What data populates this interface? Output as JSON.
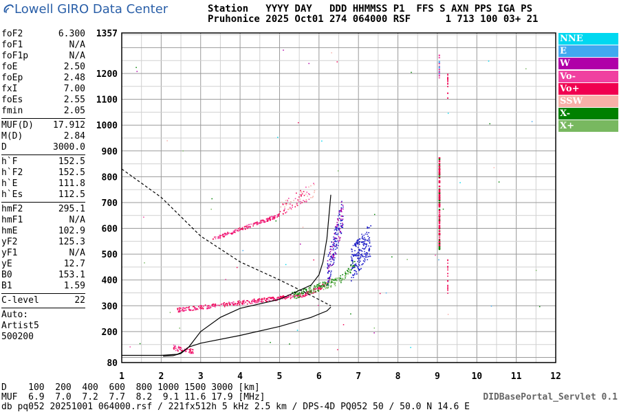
{
  "header": {
    "logo_text": "Lowell GIRO Data Center",
    "station_line1": "Station   YYYY DAY   DDD HHMMSS P1  FFS S AXN PPS IGA PS",
    "station_line2": "Pruhonice 2025 Oct01 274 064000 RSF      1 713 100 03+ 21"
  },
  "params": [
    {
      "name": "foF2",
      "value": "6.300"
    },
    {
      "name": "foF1",
      "value": "N/A"
    },
    {
      "name": "foF1p",
      "value": "N/A"
    },
    {
      "name": "foE",
      "value": "2.50"
    },
    {
      "name": "foEp",
      "value": "2.48"
    },
    {
      "name": "fxI",
      "value": "7.00"
    },
    {
      "name": "foEs",
      "value": "2.55"
    },
    {
      "name": "fmin",
      "value": "2.05"
    },
    {
      "sep": true
    },
    {
      "name": "MUF(D)",
      "value": "17.912"
    },
    {
      "name": "M(D)",
      "value": "2.84"
    },
    {
      "name": "D",
      "value": "3000.0"
    },
    {
      "sep": true
    },
    {
      "name": "h`F",
      "value": "152.5"
    },
    {
      "name": "h`F2",
      "value": "152.5"
    },
    {
      "name": "h`E",
      "value": "111.8"
    },
    {
      "name": "h`Es",
      "value": "112.5"
    },
    {
      "sep": true
    },
    {
      "name": "hmF2",
      "value": "295.1"
    },
    {
      "name": "hmF1",
      "value": "N/A"
    },
    {
      "name": "hmE",
      "value": "102.9"
    },
    {
      "name": "yF2",
      "value": "125.3"
    },
    {
      "name": "yF1",
      "value": "N/A"
    },
    {
      "name": "yE",
      "value": "12.7"
    },
    {
      "name": "B0",
      "value": "153.1"
    },
    {
      "name": "B1",
      "value": "1.59"
    },
    {
      "sep": true
    },
    {
      "name": "C-level",
      "value": "22"
    },
    {
      "sep": true
    }
  ],
  "auto": {
    "label": "Auto:",
    "line2": "Artist5",
    "line3": "500200"
  },
  "legend": [
    {
      "label": "NNE",
      "color": "#00d8f0"
    },
    {
      "label": "E",
      "color": "#40a8f0"
    },
    {
      "label": "W",
      "color": "#b000a8"
    },
    {
      "label": "Vo-",
      "color": "#f040a0"
    },
    {
      "label": "Vo+",
      "color": "#f00050"
    },
    {
      "label": "SSW",
      "color": "#f8b0a8"
    },
    {
      "label": "X-",
      "color": "#008000"
    },
    {
      "label": "X+",
      "color": "#78b860"
    }
  ],
  "footer": {
    "d_row": "D    100  200  400  600  800 1000 1500 3000 [km]",
    "muf_row": "MUF  6.9  7.0  7.2  7.7  8.2  9.1 11.6 17.9 [MHz]",
    "file_row": "db pq052 20251001 064000.rsf / 221fx512h 5 kHz 2.5 km / DPS-4D PQ052 50 / 50.0 N 14.6 E",
    "servlet": "DIDBasePortal_Servlet 0.1"
  },
  "chart_data": {
    "type": "scatter",
    "x_ticks": [
      "1",
      "2",
      "3",
      "4",
      "5",
      "6",
      "7",
      "8",
      "9",
      "10",
      "11",
      "12"
    ],
    "y_ticks": [
      "80",
      "200",
      "300",
      "400",
      "500",
      "600",
      "700",
      "800",
      "900",
      "1000",
      "1100",
      "1200",
      "1357"
    ],
    "xlim": [
      1,
      12
    ],
    "ylim": [
      80,
      1357
    ],
    "grid": true,
    "profile": [
      [
        6.3,
        295
      ],
      [
        6.32,
        380
      ],
      [
        6.3,
        500
      ],
      [
        6.28,
        620
      ],
      [
        6.3,
        730
      ]
    ],
    "virtual_height_trace": [
      [
        2.05,
        105
      ],
      [
        2.3,
        107
      ],
      [
        2.5,
        115
      ],
      [
        2.7,
        140
      ],
      [
        3.0,
        200
      ],
      [
        3.5,
        255
      ],
      [
        4.0,
        290
      ],
      [
        5.0,
        325
      ],
      [
        5.8,
        380
      ],
      [
        6.0,
        420
      ],
      [
        6.1,
        470
      ],
      [
        6.2,
        560
      ],
      [
        6.3,
        730
      ]
    ],
    "profile_lower": [
      [
        1.0,
        108
      ],
      [
        2.0,
        108
      ],
      [
        2.4,
        112
      ],
      [
        2.5,
        118
      ],
      [
        2.7,
        140
      ],
      [
        3.0,
        155
      ],
      [
        4.0,
        185
      ],
      [
        5.0,
        220
      ],
      [
        5.8,
        255
      ],
      [
        6.2,
        280
      ],
      [
        6.3,
        295
      ]
    ],
    "dashed_curve": [
      [
        1.0,
        830
      ],
      [
        2.0,
        720
      ],
      [
        3.0,
        570
      ],
      [
        4.0,
        470
      ],
      [
        5.0,
        400
      ],
      [
        5.8,
        340
      ],
      [
        6.3,
        300
      ]
    ]
  }
}
